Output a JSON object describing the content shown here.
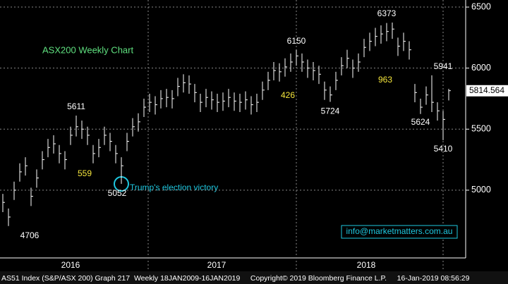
{
  "chart_data": {
    "type": "ohlc",
    "title": "ASX200 Weekly Chart",
    "series": [
      {
        "name": "high",
        "color": "#ffffff",
        "values": [
          4970,
          4850,
          5070,
          5220,
          5270,
          5020,
          5170,
          5320,
          5420,
          5450,
          5370,
          5320,
          5520,
          5611,
          5570,
          5520,
          5370,
          5420,
          5520,
          5470,
          5370,
          5270,
          5470,
          5590,
          5630,
          5750,
          5790,
          5770,
          5820,
          5830,
          5820,
          5920,
          5950,
          5940,
          5870,
          5790,
          5830,
          5810,
          5790,
          5800,
          5830,
          5800,
          5790,
          5810,
          5770,
          5790,
          5890,
          5970,
          6050,
          6040,
          6080,
          6120,
          6150,
          6120,
          6070,
          6050,
          6020,
          5890,
          5850,
          5970,
          6090,
          6150,
          6070,
          6120,
          6240,
          6290,
          6330,
          6350,
          6370,
          6373,
          6250,
          6290,
          6220,
          5870,
          5750,
          5850,
          5941,
          5720,
          5650,
          5830
        ]
      },
      {
        "name": "low",
        "color": "#ffffff",
        "values": [
          4820,
          4706,
          4920,
          5070,
          5120,
          4870,
          5020,
          5170,
          5270,
          5300,
          5220,
          5170,
          5370,
          5440,
          5420,
          5370,
          5220,
          5270,
          5370,
          5320,
          5220,
          5052,
          5320,
          5440,
          5480,
          5600,
          5640,
          5620,
          5670,
          5680,
          5670,
          5770,
          5800,
          5790,
          5720,
          5640,
          5680,
          5660,
          5640,
          5650,
          5680,
          5650,
          5640,
          5660,
          5620,
          5640,
          5740,
          5820,
          5900,
          5890,
          5930,
          5970,
          6020,
          5970,
          5920,
          5900,
          5870,
          5740,
          5724,
          5820,
          5940,
          6000,
          5920,
          5970,
          6090,
          6140,
          6180,
          6200,
          6220,
          6240,
          6100,
          6140,
          6070,
          5720,
          5624,
          5700,
          5640,
          5570,
          5410,
          5735
        ]
      },
      {
        "name": "close",
        "color": "#ffffff",
        "values": [
          4900,
          4780,
          5000,
          5150,
          5200,
          4950,
          5100,
          5250,
          5350,
          5380,
          5300,
          5250,
          5450,
          5520,
          5500,
          5450,
          5300,
          5350,
          5450,
          5400,
          5300,
          5200,
          5400,
          5520,
          5560,
          5680,
          5720,
          5700,
          5750,
          5760,
          5750,
          5850,
          5880,
          5870,
          5800,
          5720,
          5760,
          5740,
          5720,
          5730,
          5760,
          5730,
          5720,
          5740,
          5700,
          5720,
          5820,
          5900,
          5980,
          5970,
          6010,
          6050,
          6100,
          6050,
          6000,
          5980,
          5950,
          5820,
          5780,
          5900,
          6020,
          6080,
          6000,
          6050,
          6170,
          6220,
          6260,
          6280,
          6300,
          6320,
          6180,
          6220,
          6150,
          5800,
          5680,
          5780,
          5720,
          5650,
          5580,
          5815
        ]
      }
    ],
    "last_price": 5814.564,
    "ylim": [
      4445,
      6558
    ],
    "yticks": [
      5000,
      5500,
      6000,
      6500
    ],
    "grid": true,
    "x_labels": [
      "2016",
      "2017",
      "2018"
    ],
    "range_labels": [
      559,
      426,
      963
    ],
    "event_label": "Trump's election victory",
    "contact": "info@marketmatters.com.au",
    "footer": "AS51 Index (S&P/ASX 200) Graph 217  Weekly 18JAN2009-16JAN2019     Copyright© 2019 Bloomberg Finance L.P.     16-Jan-2019 08:56:29"
  }
}
